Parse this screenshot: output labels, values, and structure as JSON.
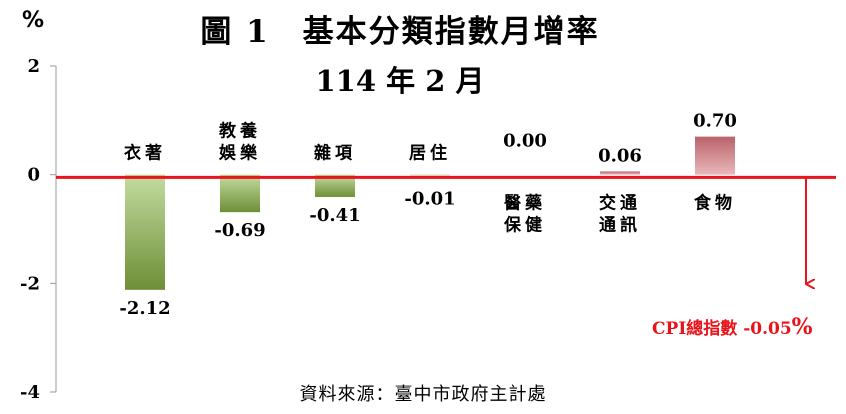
{
  "chart_data": {
    "type": "bar",
    "title": "圖 1　基本分類指數月增率",
    "subtitle": "114 年 2 月",
    "unit": "%",
    "ylim": [
      -4,
      2
    ],
    "yticks": [
      2,
      0,
      -2,
      -4
    ],
    "categories": [
      [
        "衣著"
      ],
      [
        "教養",
        "娛樂"
      ],
      [
        "雜項"
      ],
      [
        "居住"
      ],
      [
        "醫藥",
        "保健"
      ],
      [
        "交通",
        "通訊"
      ],
      [
        "食物"
      ]
    ],
    "values": [
      -2.12,
      -0.69,
      -0.41,
      -0.01,
      0.0,
      0.06,
      0.7
    ],
    "value_labels": [
      "-2.12",
      "-0.69",
      "-0.41",
      "-0.01",
      "0.00",
      "0.06",
      "0.70"
    ],
    "colors": {
      "negative_top": "#c3dca0",
      "negative_bottom": "#6e8f37",
      "positive_top": "#b9626a",
      "positive_bottom": "#e9b8bb",
      "cpi_line": "#e8141b"
    },
    "reference_line": {
      "label": "CPI總指數",
      "value": -0.05,
      "value_label": "-0.05"
    },
    "source": "資料來源：臺中市政府主計處"
  }
}
